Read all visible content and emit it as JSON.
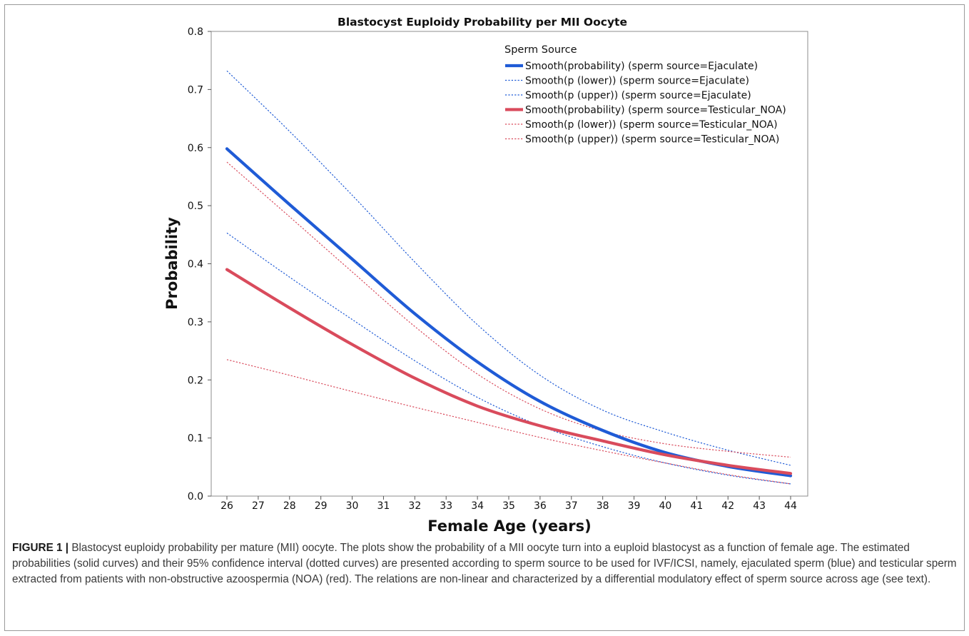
{
  "caption": {
    "label": "FIGURE 1 |",
    "text": "Blastocyst euploidy probability per mature (MII) oocyte. The plots show the probability of a MII oocyte turn into a euploid blastocyst as a function of female age. The estimated probabilities (solid curves) and their 95% confidence interval (dotted curves) are presented according to sperm source to be used for IVF/ICSI, namely, ejaculated sperm (blue) and testicular sperm extracted from patients with non-obstructive azoospermia (NOA) (red). The relations are non-linear and characterized by a differential modulatory effect of sperm source across age (see text)."
  },
  "chart_data": {
    "type": "line",
    "title": "Blastocyst Euploidy Probability per MII Oocyte",
    "xlabel": "Female Age (years)",
    "ylabel": "Probability",
    "xlim": [
      26,
      44
    ],
    "ylim": [
      0.0,
      0.8
    ],
    "x_ticks": [
      "26",
      "27",
      "28",
      "29",
      "30",
      "31",
      "32",
      "33",
      "34",
      "35",
      "36",
      "37",
      "38",
      "39",
      "40",
      "41",
      "42",
      "43",
      "44"
    ],
    "y_ticks": [
      "0.0",
      "0.1",
      "0.2",
      "0.3",
      "0.4",
      "0.5",
      "0.6",
      "0.7",
      "0.8"
    ],
    "grid": false,
    "legend_title": "Sperm Source",
    "legend_position": "top-right",
    "x": [
      26,
      28,
      30,
      32,
      34,
      36,
      38,
      40,
      42,
      44
    ],
    "series": [
      {
        "name": "Smooth(probability) (sperm source=Ejaculate)",
        "color": "#1f5bd6",
        "style": "solid",
        "values": [
          0.598,
          0.502,
          0.408,
          0.314,
          0.231,
          0.163,
          0.113,
          0.075,
          0.051,
          0.035
        ]
      },
      {
        "name": "Smooth(p (lower)) (sperm source=Ejaculate)",
        "color": "#1f5bd6",
        "style": "dotted",
        "values": [
          0.453,
          0.377,
          0.304,
          0.233,
          0.17,
          0.121,
          0.085,
          0.057,
          0.036,
          0.021
        ]
      },
      {
        "name": "Smooth(p (upper)) (sperm source=Ejaculate)",
        "color": "#1f5bd6",
        "style": "dotted",
        "values": [
          0.732,
          0.628,
          0.518,
          0.403,
          0.295,
          0.208,
          0.148,
          0.11,
          0.079,
          0.053
        ]
      },
      {
        "name": "Smooth(probability) (sperm source=Testicular_NOA)",
        "color": "#d94b5c",
        "style": "solid",
        "values": [
          0.39,
          0.324,
          0.261,
          0.203,
          0.155,
          0.121,
          0.095,
          0.071,
          0.053,
          0.039
        ]
      },
      {
        "name": "Smooth(p (lower)) (sperm source=Testicular_NOA)",
        "color": "#d94b5c",
        "style": "dotted",
        "values": [
          0.235,
          0.208,
          0.18,
          0.153,
          0.127,
          0.101,
          0.078,
          0.057,
          0.037,
          0.021
        ]
      },
      {
        "name": "Smooth(p (upper)) (sperm source=Testicular_NOA)",
        "color": "#d94b5c",
        "style": "dotted",
        "values": [
          0.575,
          0.481,
          0.386,
          0.292,
          0.21,
          0.15,
          0.112,
          0.09,
          0.077,
          0.067
        ]
      }
    ]
  }
}
